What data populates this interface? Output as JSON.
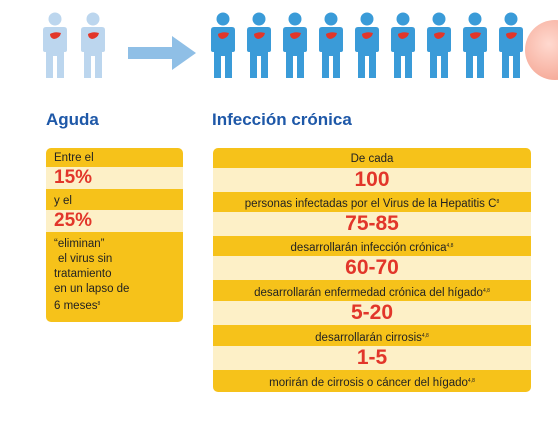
{
  "figures": {
    "acute_count": 2,
    "chronic_count": 9,
    "body_color": "#bcd6ee",
    "chronic_body_color": "#3a9bd8",
    "liver_color": "#e2362a",
    "arrow_color": "#8fbfe6"
  },
  "acute": {
    "title": "Aguda",
    "line1": "Entre el",
    "value1": "15%",
    "line2": "y el",
    "value2": "25%",
    "line3": "“eliminan”",
    "line4": "el virus sin",
    "line5": "tratamiento",
    "line6": "en un lapso de",
    "line7": "6 meses",
    "line7_ref": "8"
  },
  "chronic": {
    "title": "Infección crónica",
    "intro": "De cada",
    "total": "100",
    "total_label": "personas infectadas por el Virus de la Hepatitis C",
    "total_ref": "8",
    "items": [
      {
        "value": "75-85",
        "label": "desarrollarán infección crónica",
        "ref": "4,8"
      },
      {
        "value": "60-70",
        "label": "desarrollarán enfermedad crónica del hígado",
        "ref": "4,8"
      },
      {
        "value": "5-20",
        "label": "desarrollarán cirrosis",
        "ref": "4,8"
      },
      {
        "value": "1-5",
        "label": "morirán de cirrosis o cáncer del hígado",
        "ref": "4,8"
      }
    ]
  },
  "colors": {
    "title": "#1e58a8",
    "box": "#f6c21a",
    "band": "#fdf0c7",
    "highlight": "#e2362a"
  }
}
